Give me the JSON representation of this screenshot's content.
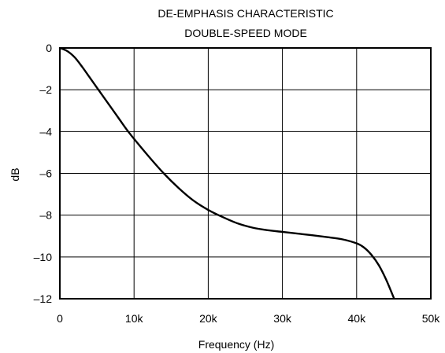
{
  "chart_data": {
    "type": "line",
    "title": [
      "DE-EMPHASIS CHARACTERISTIC",
      "DOUBLE-SPEED MODE"
    ],
    "xlabel": "Frequency (Hz)",
    "ylabel": "dB",
    "xlim": [
      0,
      50000
    ],
    "ylim": [
      -12,
      0
    ],
    "x_ticks": [
      0,
      10000,
      20000,
      30000,
      40000,
      50000
    ],
    "x_tick_labels": [
      "0",
      "10k",
      "20k",
      "30k",
      "40k",
      "50k"
    ],
    "y_ticks": [
      0,
      -2,
      -4,
      -6,
      -8,
      -10,
      -12
    ],
    "y_tick_labels": [
      "0",
      "–2",
      "–4",
      "–6",
      "–8",
      "–10",
      "–12"
    ],
    "grid": true,
    "legend": "none",
    "line_color": "#000000",
    "series": [
      {
        "x": [
          0,
          1000,
          2000,
          3000,
          4000,
          5000,
          6000,
          7000,
          8000,
          9000,
          10000,
          12000,
          14000,
          16000,
          18000,
          20000,
          22000,
          24000,
          26000,
          28000,
          30000,
          32000,
          34000,
          36000,
          38000,
          40000,
          41000,
          42000,
          43000,
          44000,
          45000
        ],
        "values": [
          0,
          -0.15,
          -0.45,
          -0.9,
          -1.4,
          -1.9,
          -2.4,
          -2.9,
          -3.4,
          -3.9,
          -4.35,
          -5.2,
          -6.0,
          -6.7,
          -7.3,
          -7.75,
          -8.1,
          -8.4,
          -8.6,
          -8.72,
          -8.8,
          -8.88,
          -8.96,
          -9.05,
          -9.15,
          -9.35,
          -9.55,
          -9.9,
          -10.4,
          -11.1,
          -11.95
        ]
      }
    ]
  }
}
